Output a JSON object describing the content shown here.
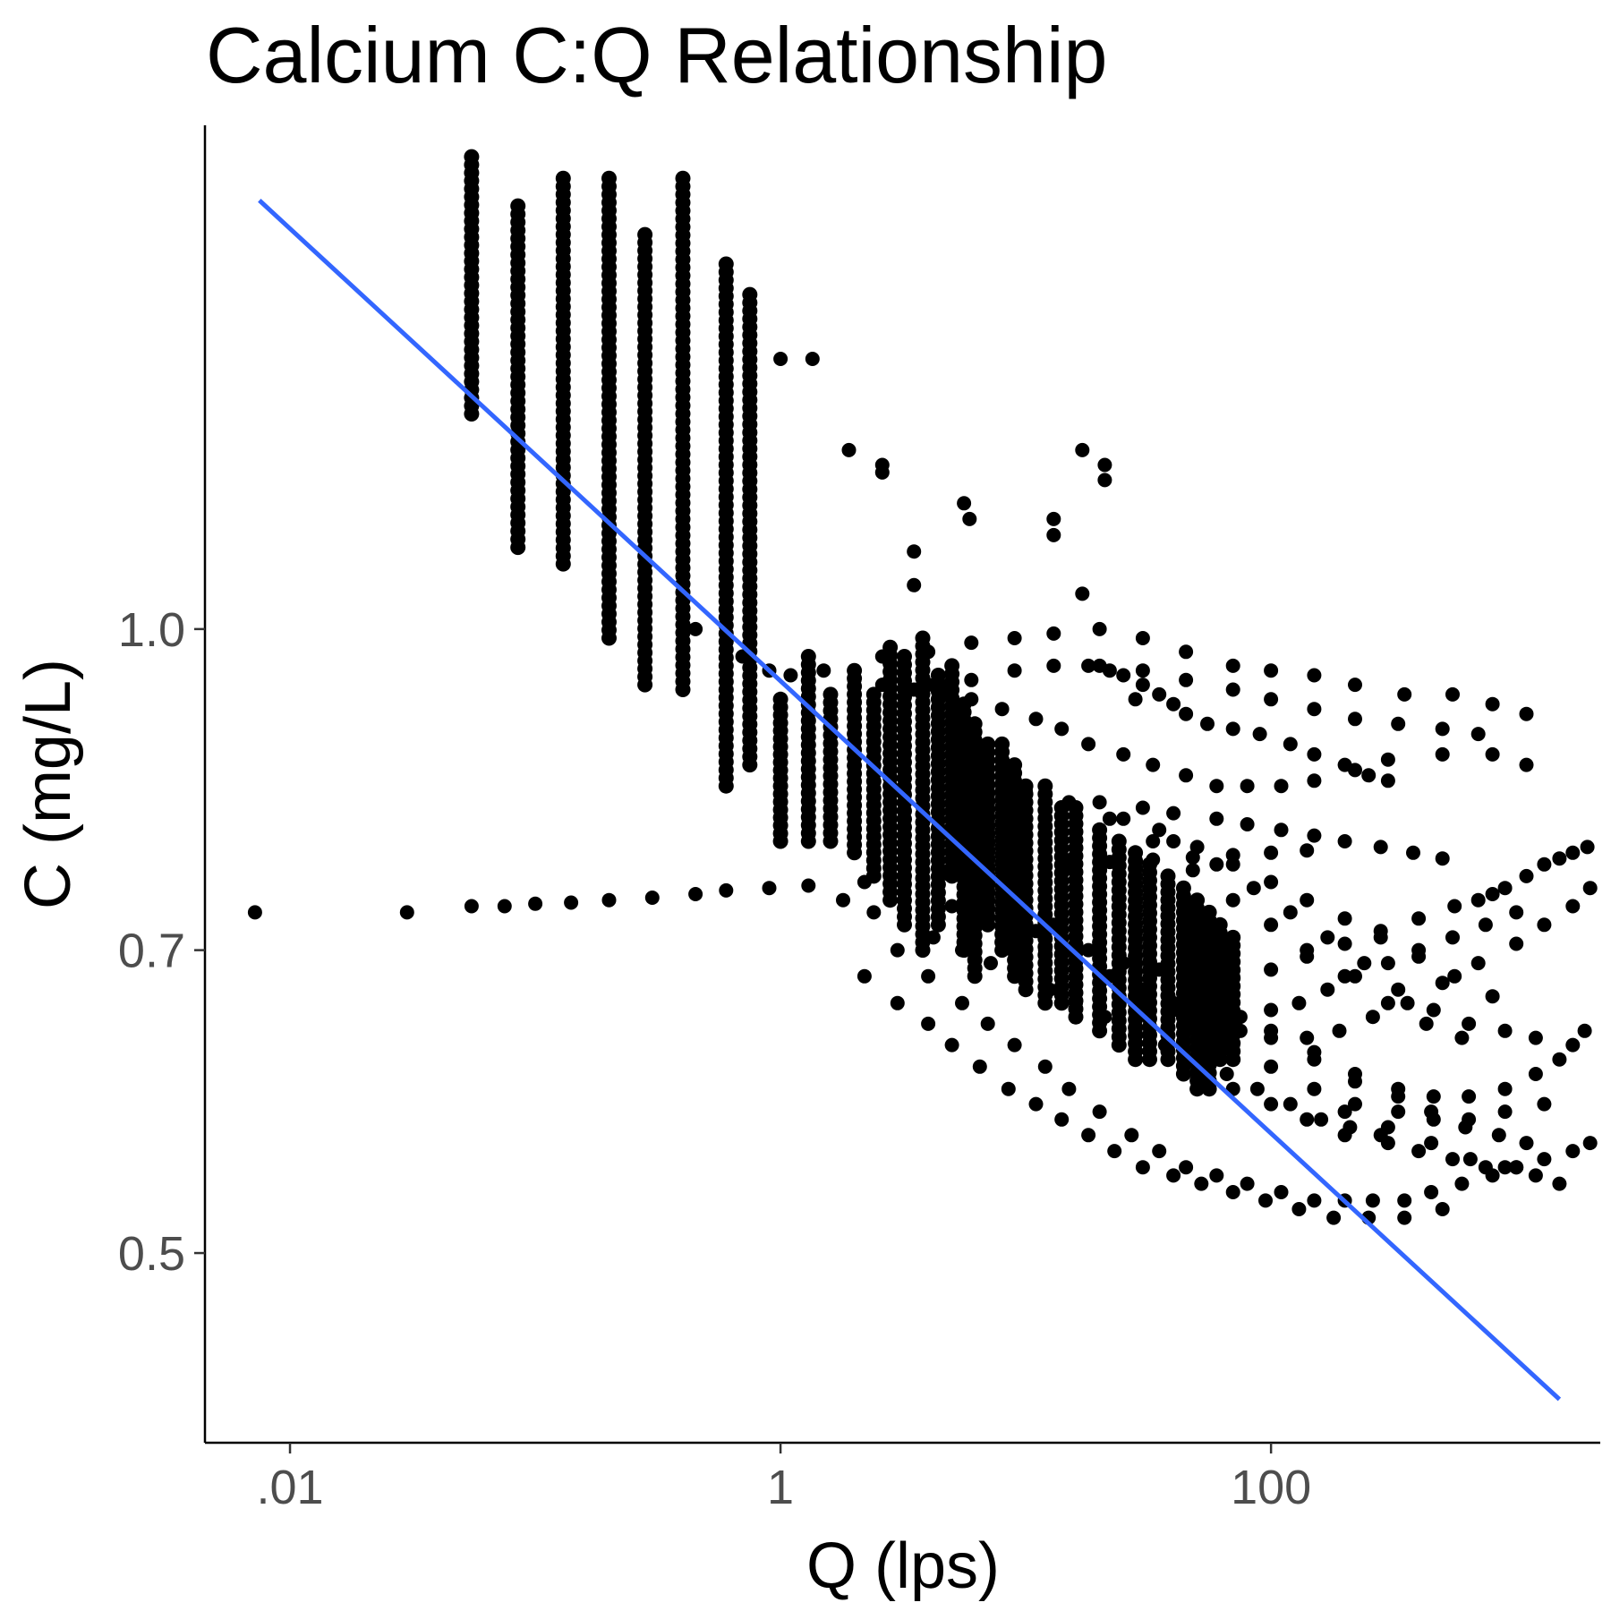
{
  "chart_data": {
    "type": "scatter",
    "title": "Calcium C:Q Relationship",
    "xlabel": "Q (lps)",
    "ylabel": "C (mg/L)",
    "x_scale": "log10",
    "y_scale": "log10",
    "xlim": [
      0.0045,
      2200
    ],
    "ylim": [
      0.405,
      1.75
    ],
    "x_ticks": [
      {
        "value": 0.01,
        "label": ".01"
      },
      {
        "value": 1,
        "label": "1"
      },
      {
        "value": 100,
        "label": "100"
      }
    ],
    "y_ticks": [
      {
        "value": 0.5,
        "label": "0.5"
      },
      {
        "value": 0.7,
        "label": "0.7"
      },
      {
        "value": 1.0,
        "label": "1.0"
      }
    ],
    "grid": false,
    "legend": "none",
    "colors": {
      "points": "#000000",
      "trend_line": "#3366ff"
    },
    "trend_line": {
      "x": [
        0.0075,
        1500
      ],
      "y": [
        1.61,
        0.425
      ]
    },
    "series": [
      {
        "type": "vertical_bands",
        "points_x": [
          0.055,
          0.085,
          0.13,
          0.2,
          0.28,
          0.4,
          0.6,
          0.75
        ],
        "points_y_ranges": [
          [
            1.27,
            1.69
          ],
          [
            1.095,
            1.6
          ],
          [
            1.075,
            1.65
          ],
          [
            0.99,
            1.65
          ],
          [
            0.94,
            1.55
          ],
          [
            0.935,
            1.65
          ],
          [
            0.84,
            1.5
          ],
          [
            0.86,
            1.45
          ]
        ]
      },
      {
        "type": "scatter",
        "x": [
          0.0072,
          0.03,
          0.055,
          0.075,
          0.1,
          0.14,
          0.2,
          0.3,
          0.45,
          0.6,
          0.9,
          1.3,
          2.2,
          3.2,
          4.8,
          6.8,
          10,
          15,
          22,
          33,
          48,
          70,
          100,
          140,
          1,
          1.35,
          1.9,
          2.6,
          2.6,
          3.5,
          3.5,
          5.6,
          5.9,
          13,
          13,
          17,
          17,
          21,
          21,
          0.45,
          0.6,
          0.7,
          0.9,
          1.1,
          1.5,
          2,
          2.6,
          3.5,
          4.6,
          6,
          8,
          11,
          14,
          18,
          25,
          33,
          45,
          60,
          80,
          110,
          150,
          220,
          300,
          500,
          800,
          1100,
          2.6,
          4,
          6,
          9,
          13,
          20,
          30,
          45,
          70,
          100,
          150,
          220,
          350,
          550,
          800,
          1100,
          4,
          6,
          9,
          13,
          20,
          30,
          45,
          70,
          100,
          150,
          220,
          330,
          500,
          700,
          6.6,
          9,
          13,
          18,
          25,
          35,
          50,
          70,
          100,
          140,
          200,
          280,
          400,
          560,
          800,
          10,
          15,
          22,
          33,
          48,
          70,
          100,
          140,
          200,
          300,
          430,
          600,
          25,
          35,
          50,
          70,
          100,
          140,
          200,
          280,
          400,
          560,
          800,
          40,
          60,
          85,
          120,
          170,
          240,
          330,
          460,
          640,
          900,
          1200,
          30,
          45,
          70,
          100,
          150,
          220,
          330,
          460,
          640,
          900,
          1300,
          100,
          150,
          220,
          330,
          460,
          640,
          900,
          1200,
          1500,
          1700,
          1900,
          200,
          300,
          450,
          650,
          900,
          1200,
          1500,
          150,
          220,
          330,
          450,
          620,
          850,
          1100,
          18,
          22,
          25,
          30,
          35,
          28,
          40,
          45,
          55,
          70,
          90,
          120,
          150,
          200,
          250,
          300,
          20,
          30,
          40,
          60,
          80,
          110,
          150,
          200,
          280,
          380,
          500,
          5,
          7,
          9,
          12,
          16,
          22,
          30,
          40,
          55,
          75,
          100,
          130,
          170,
          220,
          300,
          400,
          550,
          750,
          1000,
          8,
          11,
          15,
          20,
          28,
          40,
          55,
          75,
          100,
          140,
          190,
          260,
          360,
          500,
          700,
          1000,
          1300,
          1700,
          2000,
          3,
          4,
          5.5,
          7,
          9,
          12,
          15,
          20,
          27,
          35,
          45,
          60,
          80,
          110,
          150,
          200,
          260,
          350,
          450,
          600,
          800,
          1000,
          2.2,
          3,
          4,
          5,
          6.5,
          8.5,
          11,
          14,
          18,
          23,
          30,
          40,
          52,
          70,
          95,
          130,
          180,
          250,
          350,
          500,
          1.8,
          2.4,
          3.2,
          4.2,
          5.5,
          7.2,
          9.5,
          12.5,
          16,
          21,
          28,
          37,
          50,
          66,
          88,
          120,
          160,
          210,
          280,
          50,
          70,
          100,
          140,
          200,
          300,
          400,
          550,
          750,
          1000,
          1300,
          1700,
          2000,
          700,
          900,
          1100,
          1300,
          1500,
          1700,
          1950
        ],
        "y": [
          0.73,
          0.73,
          0.735,
          0.735,
          0.737,
          0.738,
          0.74,
          0.742,
          0.745,
          0.748,
          0.75,
          0.752,
          0.755,
          0.758,
          0.762,
          0.765,
          0.768,
          0.77,
          0.772,
          0.774,
          0.776,
          0.778,
          0.78,
          0.782,
          1.35,
          1.35,
          1.22,
          1.19,
          1.2,
          1.09,
          1.05,
          1.15,
          1.13,
          1.11,
          1.13,
          1.22,
          1.04,
          1.2,
          1.18,
          1.0,
          0.985,
          0.97,
          0.955,
          0.95,
          0.955,
          0.945,
          0.94,
          0.935,
          0.935,
          0.925,
          0.915,
          0.905,
          0.895,
          0.88,
          0.87,
          0.86,
          0.85,
          0.84,
          0.84,
          0.84,
          0.845,
          0.855,
          0.865,
          0.87,
          0.87,
          0.86,
          0.97,
          0.975,
          0.985,
          0.99,
          0.995,
          1.0,
          0.99,
          0.975,
          0.96,
          0.955,
          0.95,
          0.94,
          0.93,
          0.93,
          0.92,
          0.91,
          0.94,
          0.945,
          0.955,
          0.96,
          0.96,
          0.955,
          0.945,
          0.935,
          0.925,
          0.915,
          0.905,
          0.9,
          0.895,
          0.89,
          0.76,
          0.74,
          0.72,
          0.7,
          0.69,
          0.685,
          0.68,
          0.68,
          0.685,
          0.695,
          0.705,
          0.715,
          0.725,
          0.735,
          0.745,
          0.835,
          0.825,
          0.81,
          0.79,
          0.765,
          0.74,
          0.72,
          0.7,
          0.68,
          0.66,
          0.645,
          0.635,
          0.81,
          0.8,
          0.785,
          0.77,
          0.755,
          0.74,
          0.725,
          0.71,
          0.695,
          0.68,
          0.665,
          0.79,
          0.77,
          0.75,
          0.73,
          0.71,
          0.69,
          0.67,
          0.655,
          0.645,
          0.64,
          0.635,
          0.66,
          0.645,
          0.63,
          0.615,
          0.6,
          0.59,
          0.585,
          0.58,
          0.58,
          0.585,
          0.59,
          0.64,
          0.625,
          0.61,
          0.6,
          0.595,
          0.595,
          0.6,
          0.61,
          0.62,
          0.63,
          0.64,
          0.585,
          0.575,
          0.565,
          0.555,
          0.55,
          0.545,
          0.54,
          0.62,
          0.605,
          0.595,
          0.585,
          0.575,
          0.57,
          0.565,
          0.96,
          0.955,
          0.95,
          0.94,
          0.93,
          0.925,
          0.92,
          0.91,
          0.9,
          0.895,
          0.89,
          0.88,
          0.87,
          0.86,
          0.85,
          0.845,
          0.825,
          0.82,
          0.815,
          0.81,
          0.805,
          0.8,
          0.795,
          0.79,
          0.785,
          0.78,
          0.775,
          0.735,
          0.725,
          0.71,
          0.7,
          0.69,
          0.68,
          0.67,
          0.66,
          0.655,
          0.65,
          0.655,
          0.66,
          0.67,
          0.68,
          0.69,
          0.7,
          0.71,
          0.72,
          0.73,
          0.725,
          0.715,
          0.7,
          0.685,
          0.67,
          0.655,
          0.645,
          0.64,
          0.635,
          0.635,
          0.64,
          0.65,
          0.66,
          0.675,
          0.69,
          0.705,
          0.72,
          0.735,
          0.75,
          0.7,
          0.68,
          0.66,
          0.645,
          0.63,
          0.615,
          0.6,
          0.585,
          0.57,
          0.56,
          0.55,
          0.545,
          0.54,
          0.535,
          0.53,
          0.53,
          0.53,
          0.53,
          0.535,
          0.54,
          0.545,
          0.55,
          0.68,
          0.66,
          0.645,
          0.63,
          0.615,
          0.6,
          0.59,
          0.58,
          0.57,
          0.56,
          0.55,
          0.545,
          0.54,
          0.535,
          0.53,
          0.525,
          0.52,
          0.52,
          0.52,
          0.525,
          0.74,
          0.73,
          0.72,
          0.71,
          0.7,
          0.69,
          0.68,
          0.67,
          0.66,
          0.65,
          0.64,
          0.63,
          0.62,
          0.61,
          0.6,
          0.59,
          0.58,
          0.575,
          0.57,
          0.61,
          0.6,
          0.59,
          0.58,
          0.57,
          0.565,
          0.56,
          0.555,
          0.55,
          0.55,
          0.555,
          0.56,
          0.565,
          0.74,
          0.75,
          0.76,
          0.77,
          0.775,
          0.78,
          0.785
        ]
      },
      {
        "type": "vertical_bands",
        "points_x": [
          1,
          1.3,
          1.6,
          2,
          2.4,
          2.8,
          3.2,
          3.8,
          4.4,
          5,
          5.6,
          6.2,
          7,
          8,
          9,
          10,
          12,
          14,
          16,
          20,
          24,
          28,
          32,
          38,
          44,
          50,
          56,
          62,
          70
        ],
        "points_y_ranges": [
          [
            0.79,
            0.925
          ],
          [
            0.79,
            0.97
          ],
          [
            0.79,
            0.93
          ],
          [
            0.78,
            0.955
          ],
          [
            0.76,
            0.93
          ],
          [
            0.74,
            0.98
          ],
          [
            0.72,
            0.97
          ],
          [
            0.7,
            0.99
          ],
          [
            0.72,
            0.95
          ],
          [
            0.76,
            0.96
          ],
          [
            0.7,
            0.92
          ],
          [
            0.68,
            0.9
          ],
          [
            0.72,
            0.88
          ],
          [
            0.7,
            0.88
          ],
          [
            0.68,
            0.86
          ],
          [
            0.67,
            0.84
          ],
          [
            0.66,
            0.84
          ],
          [
            0.66,
            0.82
          ],
          [
            0.65,
            0.82
          ],
          [
            0.64,
            0.8
          ],
          [
            0.63,
            0.79
          ],
          [
            0.62,
            0.78
          ],
          [
            0.62,
            0.77
          ],
          [
            0.62,
            0.76
          ],
          [
            0.61,
            0.75
          ],
          [
            0.6,
            0.74
          ],
          [
            0.6,
            0.73
          ],
          [
            0.62,
            0.72
          ],
          [
            0.62,
            0.71
          ]
        ]
      }
    ]
  }
}
